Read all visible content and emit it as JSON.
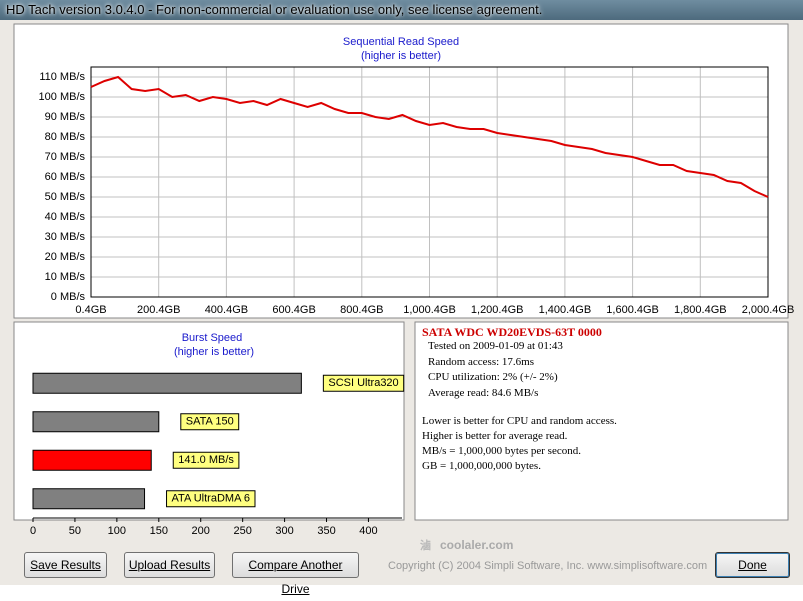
{
  "window": {
    "title": "HD Tach version 3.0.4.0  - For non-commercial or evaluation use only, see license agreement."
  },
  "chart_data": [
    {
      "type": "line",
      "title": "Sequential Read Speed",
      "subtitle": "(higher is better)",
      "color": "#dd0000",
      "grid": true,
      "x": [
        0.4,
        40.4,
        80.4,
        120.4,
        160.4,
        200.4,
        240.4,
        280.4,
        320.4,
        360.4,
        400.4,
        440.4,
        480.4,
        520.4,
        560.4,
        600.4,
        640.4,
        680.4,
        720.4,
        760.4,
        800.4,
        840.4,
        880.4,
        920.4,
        960.4,
        1000.4,
        1040.4,
        1080.4,
        1120.4,
        1160.4,
        1200.4,
        1240.4,
        1280.4,
        1320.4,
        1360.4,
        1400.4,
        1440.4,
        1480.4,
        1520.4,
        1560.4,
        1600.4,
        1640.4,
        1680.4,
        1720.4,
        1760.4,
        1800.4,
        1840.4,
        1880.4,
        1920.4,
        1960.4,
        2000.4
      ],
      "values": [
        105,
        108,
        110,
        104,
        103,
        104,
        100,
        101,
        98,
        100,
        99,
        97,
        98,
        96,
        99,
        97,
        95,
        97,
        94,
        92,
        92,
        90,
        89,
        91,
        88,
        86,
        87,
        85,
        84,
        84,
        82,
        81,
        80,
        79,
        78,
        76,
        75,
        74,
        72,
        71,
        70,
        68,
        66,
        66,
        63,
        62,
        61,
        58,
        57,
        53,
        50
      ],
      "xlim": [
        0.4,
        2000.4
      ],
      "xticks": [
        {
          "value": 0.4,
          "label": "0.4GB"
        },
        {
          "value": 200.4,
          "label": "200.4GB"
        },
        {
          "value": 400.4,
          "label": "400.4GB"
        },
        {
          "value": 600.4,
          "label": "600.4GB"
        },
        {
          "value": 800.4,
          "label": "800.4GB"
        },
        {
          "value": 1000.4,
          "label": "1,000.4GB"
        },
        {
          "value": 1200.4,
          "label": "1,200.4GB"
        },
        {
          "value": 1400.4,
          "label": "1,400.4GB"
        },
        {
          "value": 1600.4,
          "label": "1,600.4GB"
        },
        {
          "value": 1800.4,
          "label": "1,800.4GB"
        },
        {
          "value": 2000.4,
          "label": "2,000.4GB"
        }
      ],
      "ylim": [
        0,
        115
      ],
      "yticks": [
        {
          "value": 0,
          "label": "0 MB/s"
        },
        {
          "value": 10,
          "label": "10 MB/s"
        },
        {
          "value": 20,
          "label": "20 MB/s"
        },
        {
          "value": 30,
          "label": "30 MB/s"
        },
        {
          "value": 40,
          "label": "40 MB/s"
        },
        {
          "value": 50,
          "label": "50 MB/s"
        },
        {
          "value": 60,
          "label": "60 MB/s"
        },
        {
          "value": 70,
          "label": "70 MB/s"
        },
        {
          "value": 80,
          "label": "80 MB/s"
        },
        {
          "value": 90,
          "label": "90 MB/s"
        },
        {
          "value": 100,
          "label": "100 MB/s"
        },
        {
          "value": 110,
          "label": "110 MB/s"
        }
      ]
    },
    {
      "type": "hbar",
      "title": "Burst Speed",
      "subtitle": "(higher is better)",
      "categories": [
        "SCSI Ultra320",
        "SATA 150",
        null,
        "ATA UltraDMA 6"
      ],
      "values": [
        320,
        150,
        141,
        133
      ],
      "value_labels": [
        null,
        null,
        "141.0 MB/s",
        null
      ],
      "colors": [
        "#808080",
        "#808080",
        "#ff0000",
        "#808080"
      ],
      "xlim": [
        0,
        440
      ],
      "xticks": [
        0,
        50,
        100,
        150,
        200,
        250,
        300,
        350,
        400
      ]
    }
  ],
  "info": {
    "drive": "SATA WDC WD20EVDS-63T 0000",
    "lines": [
      "Tested on 2009-01-09 at 01:43",
      "Random access: 17.6ms",
      "CPU utilization: 2% (+/- 2%)",
      "Average read: 84.6 MB/s"
    ],
    "notes": [
      "Lower is better for CPU and random access.",
      "Higher is better for average read.",
      "MB/s = 1,000,000 bytes per second.",
      "GB = 1,000,000,000 bytes."
    ]
  },
  "buttons": [
    "Save Results",
    "Upload Results",
    "Compare Another Drive",
    "Done"
  ],
  "watermark": "coolaler.com",
  "copyright": "Copyright (C) 2004 Simpli Software, Inc. www.simplisoftware.com"
}
